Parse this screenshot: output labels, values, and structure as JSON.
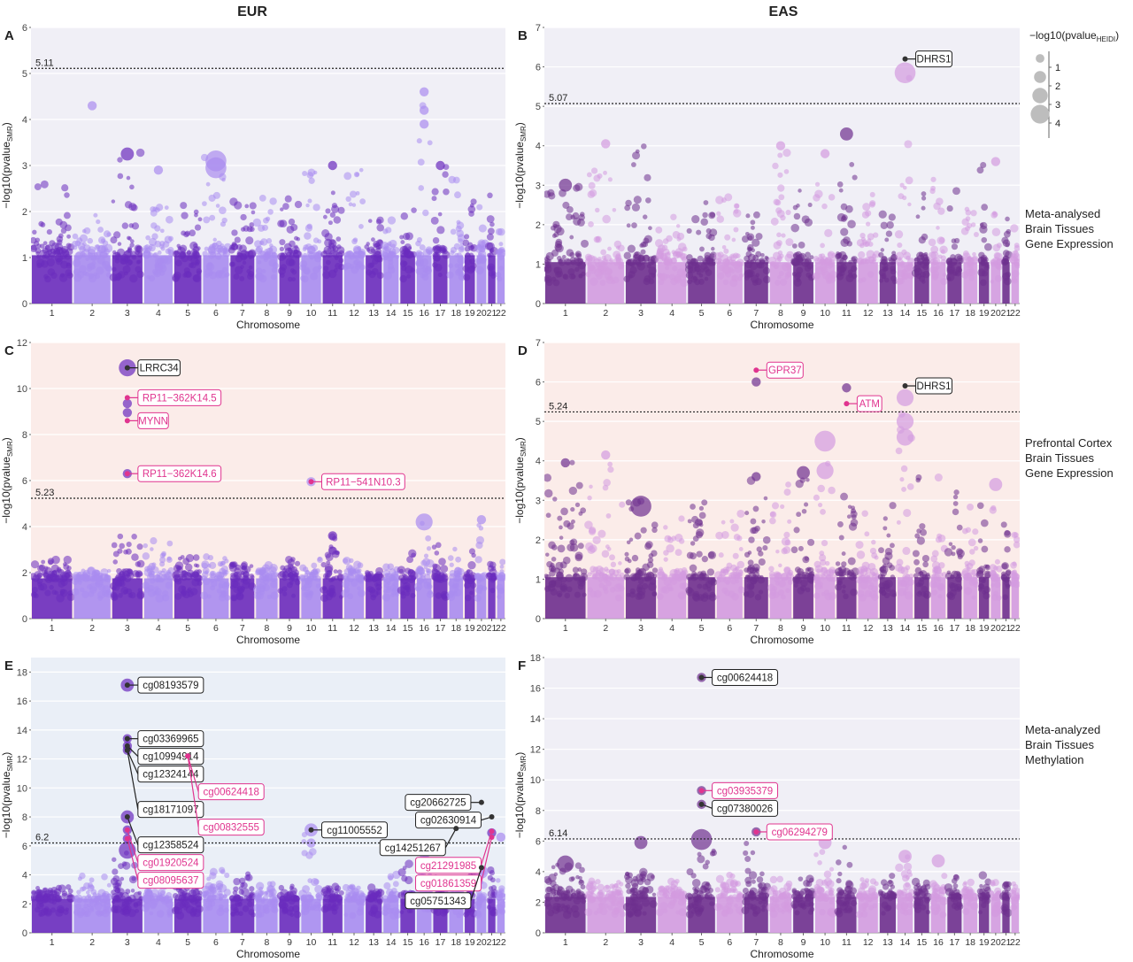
{
  "columns": {
    "left": "EUR",
    "right": "EAS"
  },
  "row_labels": [
    [
      "Meta-analysed",
      "Brain Tissues",
      "Gene Expression"
    ],
    [
      "Prefrontal Cortex",
      "Brain Tissues",
      "Gene Expression"
    ],
    [
      "Meta-analyzed",
      "Brain Tissues",
      "Methylation"
    ]
  ],
  "size_legend": {
    "title": "−log10(pvalue",
    "title_sub": "HEIDI",
    "title_end": ")",
    "values": [
      1,
      2,
      3,
      4
    ]
  },
  "colors": {
    "eur_dark": "#6a2bbd",
    "eur_light": "#a98cf0",
    "eas_dark": "#6e2f8e",
    "eas_light": "#d39be0",
    "bg_lavender": "#f0eff6",
    "bg_peach": "#fbece9",
    "bg_blue": "#eaeff7",
    "pink_label": "#e0348f"
  },
  "chart_data": [
    {
      "panel": "A",
      "type": "scatter",
      "subtype": "manhattan",
      "population": "EUR",
      "xlabel": "Chromosome",
      "ylabel": "−log10(pvalue",
      "ylabel_sub": "SMR",
      "ylim": [
        0,
        6
      ],
      "yticks": [
        0,
        1,
        2,
        3,
        4,
        5,
        6
      ],
      "chromosome_labels": [
        "1",
        "2",
        "3",
        "4",
        "5",
        "6",
        "7",
        "8",
        "9",
        "10",
        "11",
        "12",
        "13",
        "14",
        "15",
        "16",
        "17",
        "18",
        "19",
        "20",
        "21",
        "22"
      ],
      "threshold": 5.11,
      "threshold_label": "5.11",
      "grid": true,
      "background": "lavender",
      "palette": [
        "eur_dark",
        "eur_light"
      ],
      "highlight_points": [
        {
          "chr": "2",
          "y": 4.3,
          "heidi": 1
        },
        {
          "chr": "16",
          "y": 4.6,
          "heidi": 1
        },
        {
          "chr": "16",
          "y": 4.2,
          "heidi": 1
        },
        {
          "chr": "16",
          "y": 3.9,
          "heidi": 1
        },
        {
          "chr": "3",
          "y": 3.25,
          "heidi": 2
        },
        {
          "chr": "6",
          "y": 3.1,
          "heidi": 4
        },
        {
          "chr": "6",
          "y": 2.95,
          "heidi": 4
        },
        {
          "chr": "11",
          "y": 3.0,
          "heidi": 1
        },
        {
          "chr": "4",
          "y": 2.9,
          "heidi": 1
        },
        {
          "chr": "17",
          "y": 3.0,
          "heidi": 1
        }
      ],
      "labels": []
    },
    {
      "panel": "B",
      "type": "scatter",
      "subtype": "manhattan",
      "population": "EAS",
      "xlabel": "Chromosome",
      "ylabel": "−log10(pvalue",
      "ylabel_sub": "SMR",
      "ylim": [
        0,
        7
      ],
      "yticks": [
        0,
        1,
        2,
        3,
        4,
        5,
        6,
        7
      ],
      "chromosome_labels": [
        "1",
        "2",
        "3",
        "4",
        "5",
        "6",
        "7",
        "8",
        "9",
        "10",
        "11",
        "12",
        "13",
        "14",
        "15",
        "16",
        "17",
        "18",
        "19",
        "20",
        "21",
        "22"
      ],
      "threshold": 5.07,
      "threshold_label": "5.07",
      "grid": true,
      "background": "lavender",
      "palette": [
        "eas_dark",
        "eas_light"
      ],
      "highlight_points": [
        {
          "chr": "14",
          "y": 5.85,
          "heidi": 4
        },
        {
          "chr": "11",
          "y": 4.3,
          "heidi": 2
        },
        {
          "chr": "8",
          "y": 4.0,
          "heidi": 1
        },
        {
          "chr": "2",
          "y": 4.05,
          "heidi": 1
        },
        {
          "chr": "10",
          "y": 3.8,
          "heidi": 1
        },
        {
          "chr": "20",
          "y": 3.6,
          "heidi": 1
        },
        {
          "chr": "1",
          "y": 3.0,
          "heidi": 2
        }
      ],
      "labels": [
        {
          "text": "DHRS1",
          "chr": "14",
          "y": 6.2,
          "color": "black"
        }
      ]
    },
    {
      "panel": "C",
      "type": "scatter",
      "subtype": "manhattan",
      "population": "EUR",
      "xlabel": "Chromosome",
      "ylabel": "−log10(pvalue",
      "ylabel_sub": "SMR",
      "ylim": [
        0,
        12
      ],
      "yticks": [
        0,
        2,
        4,
        6,
        8,
        10,
        12
      ],
      "chromosome_labels": [
        "1",
        "2",
        "3",
        "4",
        "5",
        "6",
        "7",
        "8",
        "9",
        "10",
        "11",
        "12",
        "13",
        "14",
        "15",
        "16",
        "17",
        "18",
        "19",
        "20",
        "21",
        "22"
      ],
      "threshold": 5.23,
      "threshold_label": "5.23",
      "grid": true,
      "background": "peach",
      "palette": [
        "eur_dark",
        "eur_light"
      ],
      "highlight_points": [
        {
          "chr": "3",
          "y": 10.9,
          "heidi": 3
        },
        {
          "chr": "3",
          "y": 9.35,
          "heidi": 1
        },
        {
          "chr": "3",
          "y": 8.95,
          "heidi": 1
        },
        {
          "chr": "3",
          "y": 6.3,
          "heidi": 1
        },
        {
          "chr": "10",
          "y": 5.95,
          "heidi": 1
        },
        {
          "chr": "11",
          "y": 3.6,
          "heidi": 1
        },
        {
          "chr": "16",
          "y": 4.2,
          "heidi": 3
        },
        {
          "chr": "20",
          "y": 4.3,
          "heidi": 1
        }
      ],
      "labels": [
        {
          "text": "LRRC34",
          "chr": "3",
          "y": 10.9,
          "color": "black"
        },
        {
          "text": "RP11−362K14.5",
          "chr": "3",
          "y": 9.6,
          "color": "pink"
        },
        {
          "text": "MYNN",
          "chr": "3",
          "y": 8.6,
          "color": "pink"
        },
        {
          "text": "RP11−362K14.6",
          "chr": "3",
          "y": 6.3,
          "color": "pink"
        },
        {
          "text": "RP11−541N10.3",
          "chr": "10",
          "y": 5.95,
          "color": "pink"
        }
      ]
    },
    {
      "panel": "D",
      "type": "scatter",
      "subtype": "manhattan",
      "population": "EAS",
      "xlabel": "Chromosome",
      "ylabel": "−log10(pvalue",
      "ylabel_sub": "SMR",
      "ylim": [
        0,
        7
      ],
      "yticks": [
        0,
        1,
        2,
        3,
        4,
        5,
        6,
        7
      ],
      "chromosome_labels": [
        "1",
        "2",
        "3",
        "4",
        "5",
        "6",
        "7",
        "8",
        "9",
        "10",
        "11",
        "12",
        "13",
        "14",
        "15",
        "16",
        "17",
        "18",
        "19",
        "20",
        "21",
        "22"
      ],
      "threshold": 5.24,
      "threshold_label": "5.24",
      "grid": true,
      "background": "peach",
      "palette": [
        "eas_dark",
        "eas_light"
      ],
      "highlight_points": [
        {
          "chr": "7",
          "y": 6.0,
          "heidi": 1
        },
        {
          "chr": "11",
          "y": 5.85,
          "heidi": 1
        },
        {
          "chr": "14",
          "y": 5.6,
          "heidi": 3
        },
        {
          "chr": "14",
          "y": 5.0,
          "heidi": 3
        },
        {
          "chr": "14",
          "y": 4.6,
          "heidi": 3
        },
        {
          "chr": "10",
          "y": 4.5,
          "heidi": 4
        },
        {
          "chr": "10",
          "y": 3.75,
          "heidi": 3
        },
        {
          "chr": "9",
          "y": 3.7,
          "heidi": 2
        },
        {
          "chr": "3",
          "y": 2.85,
          "heidi": 4
        },
        {
          "chr": "20",
          "y": 3.4,
          "heidi": 2
        },
        {
          "chr": "1",
          "y": 3.95,
          "heidi": 1
        },
        {
          "chr": "2",
          "y": 4.15,
          "heidi": 1
        },
        {
          "chr": "7",
          "y": 3.6,
          "heidi": 1
        }
      ],
      "labels": [
        {
          "text": "GPR37",
          "chr": "7",
          "y": 6.3,
          "color": "pink"
        },
        {
          "text": "ATM",
          "chr": "11",
          "y": 5.45,
          "color": "pink"
        },
        {
          "text": "DHRS1",
          "chr": "14",
          "y": 5.9,
          "color": "black"
        }
      ]
    },
    {
      "panel": "E",
      "type": "scatter",
      "subtype": "manhattan",
      "population": "EUR",
      "xlabel": "Chromosome",
      "ylabel": "−log10(pvalue",
      "ylabel_sub": "SMR",
      "ylim": [
        0,
        19
      ],
      "yticks": [
        0,
        2,
        4,
        6,
        8,
        10,
        12,
        14,
        16,
        18
      ],
      "chromosome_labels": [
        "1",
        "2",
        "3",
        "4",
        "5",
        "6",
        "7",
        "8",
        "9",
        "10",
        "11",
        "12",
        "13",
        "14",
        "15",
        "16",
        "17",
        "18",
        "19",
        "20",
        "21",
        "22"
      ],
      "threshold": 6.2,
      "threshold_label": "6.2",
      "grid": true,
      "background": "blue",
      "palette": [
        "eur_dark",
        "eur_light"
      ],
      "highlight_points": [
        {
          "chr": "3",
          "y": 17.1,
          "heidi": 2
        },
        {
          "chr": "3",
          "y": 13.4,
          "heidi": 1
        },
        {
          "chr": "3",
          "y": 12.9,
          "heidi": 1
        },
        {
          "chr": "3",
          "y": 12.6,
          "heidi": 1
        },
        {
          "chr": "5",
          "y": 12.2,
          "heidi": 1
        },
        {
          "chr": "3",
          "y": 8.0,
          "heidi": 2
        },
        {
          "chr": "3",
          "y": 7.1,
          "heidi": 1
        },
        {
          "chr": "3",
          "y": 6.5,
          "heidi": 1
        },
        {
          "chr": "3",
          "y": 5.7,
          "heidi": 3
        },
        {
          "chr": "10",
          "y": 7.1,
          "heidi": 2
        },
        {
          "chr": "10",
          "y": 6.2,
          "heidi": 1
        },
        {
          "chr": "21",
          "y": 6.9,
          "heidi": 1
        },
        {
          "chr": "22",
          "y": 6.6,
          "heidi": 1
        },
        {
          "chr": "16",
          "y": 5.4,
          "heidi": 1
        },
        {
          "chr": "20",
          "y": 4.2,
          "heidi": 2
        }
      ],
      "labels": [
        {
          "text": "cg08193579",
          "chr": "3",
          "y": 17.1,
          "color": "black"
        },
        {
          "text": "cg03369965",
          "chr": "3",
          "y": 13.4,
          "color": "black"
        },
        {
          "text": "cg10994914",
          "chr": "3",
          "y": 12.9,
          "color": "black"
        },
        {
          "text": "cg12324144",
          "chr": "3",
          "y": 12.6,
          "color": "black"
        },
        {
          "text": "cg00624418",
          "chr": "5",
          "y": 12.2,
          "color": "pink"
        },
        {
          "text": "cg18171097",
          "chr": "3",
          "y": 12.6,
          "color": "black"
        },
        {
          "text": "cg00832555",
          "chr": "5",
          "y": 12.2,
          "color": "pink"
        },
        {
          "text": "cg12358524",
          "chr": "3",
          "y": 8.0,
          "color": "black"
        },
        {
          "text": "cg01920524",
          "chr": "3",
          "y": 7.1,
          "color": "pink"
        },
        {
          "text": "cg08095637",
          "chr": "3",
          "y": 6.5,
          "color": "pink"
        },
        {
          "text": "cg11005552",
          "chr": "10",
          "y": 7.1,
          "color": "black"
        },
        {
          "text": "cg20662725",
          "chr": "20",
          "y": 9.0,
          "color": "black"
        },
        {
          "text": "cg02630914",
          "chr": "21",
          "y": 8.0,
          "color": "black"
        },
        {
          "text": "cg14251267",
          "chr": "18",
          "y": 7.2,
          "color": "black"
        },
        {
          "text": "cg21291985",
          "chr": "21",
          "y": 7.0,
          "color": "pink"
        },
        {
          "text": "cg01861359",
          "chr": "21",
          "y": 6.6,
          "color": "pink"
        },
        {
          "text": "cg05751343",
          "chr": "20",
          "y": 4.5,
          "color": "black"
        }
      ]
    },
    {
      "panel": "F",
      "type": "scatter",
      "subtype": "manhattan",
      "population": "EAS",
      "xlabel": "Chromosome",
      "ylabel": "−log10(pvalue",
      "ylabel_sub": "SMR",
      "ylim": [
        0,
        18
      ],
      "yticks": [
        0,
        2,
        4,
        6,
        8,
        10,
        12,
        14,
        16,
        18
      ],
      "chromosome_labels": [
        "1",
        "2",
        "3",
        "4",
        "5",
        "6",
        "7",
        "8",
        "9",
        "10",
        "11",
        "12",
        "13",
        "14",
        "15",
        "16",
        "17",
        "18",
        "19",
        "20",
        "21",
        "22"
      ],
      "threshold": 6.14,
      "threshold_label": "6.14",
      "grid": true,
      "background": "lavender",
      "palette": [
        "eas_dark",
        "eas_light"
      ],
      "highlight_points": [
        {
          "chr": "5",
          "y": 16.7,
          "heidi": 1
        },
        {
          "chr": "5",
          "y": 9.3,
          "heidi": 1
        },
        {
          "chr": "5",
          "y": 8.4,
          "heidi": 1
        },
        {
          "chr": "5",
          "y": 6.1,
          "heidi": 4
        },
        {
          "chr": "7",
          "y": 6.6,
          "heidi": 1
        },
        {
          "chr": "3",
          "y": 5.9,
          "heidi": 2
        },
        {
          "chr": "10",
          "y": 5.9,
          "heidi": 2
        },
        {
          "chr": "14",
          "y": 5.0,
          "heidi": 2
        },
        {
          "chr": "16",
          "y": 4.7,
          "heidi": 2
        },
        {
          "chr": "1",
          "y": 4.5,
          "heidi": 3
        }
      ],
      "labels": [
        {
          "text": "cg00624418",
          "chr": "5",
          "y": 16.7,
          "color": "black"
        },
        {
          "text": "cg03935379",
          "chr": "5",
          "y": 9.3,
          "color": "pink"
        },
        {
          "text": "cg07380026",
          "chr": "5",
          "y": 8.4,
          "color": "black"
        },
        {
          "text": "cg06294279",
          "chr": "7",
          "y": 6.6,
          "color": "pink"
        }
      ]
    }
  ]
}
